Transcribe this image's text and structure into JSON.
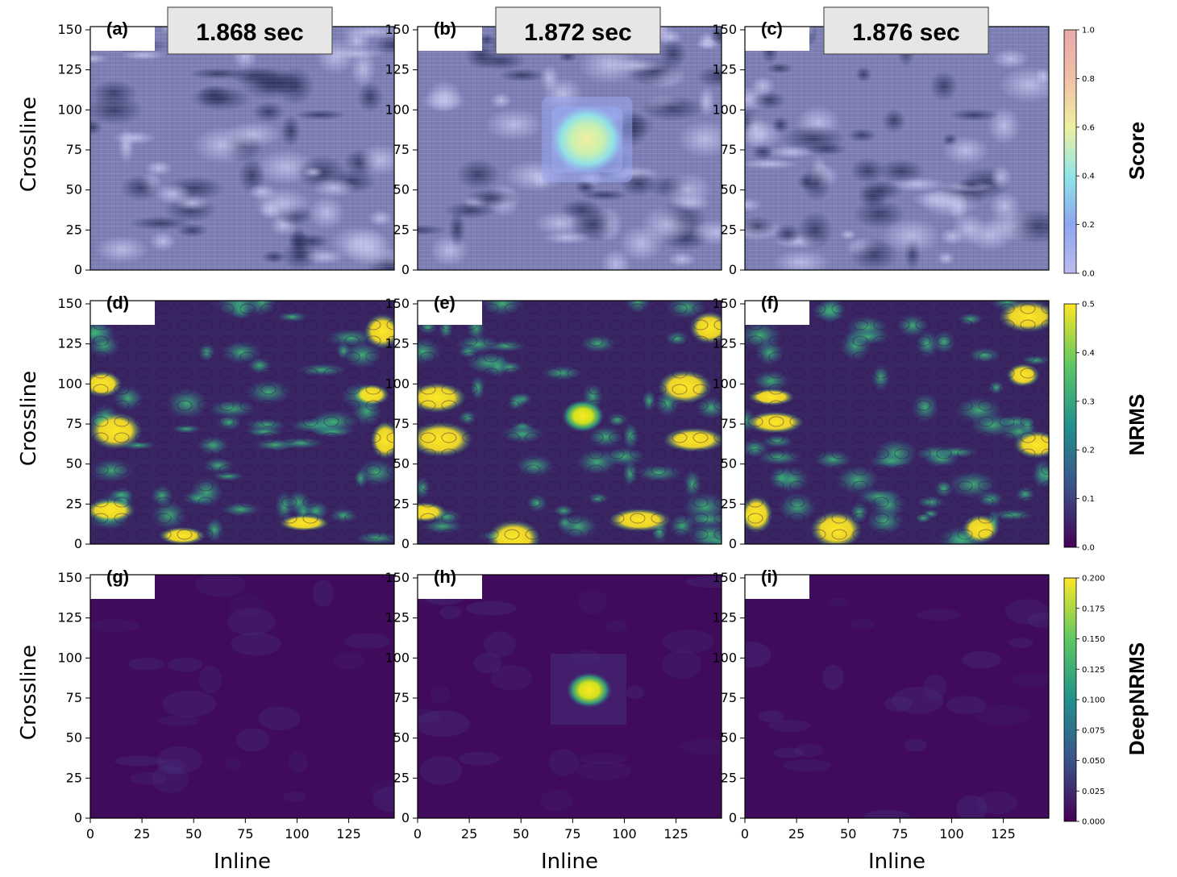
{
  "chart_data": {
    "type": "heatmap",
    "grid": "off",
    "times": [
      "1.868 sec",
      "1.872 sec",
      "1.876 sec"
    ],
    "panel_labels": [
      "(a)",
      "(b)",
      "(c)",
      "(d)",
      "(e)",
      "(f)",
      "(g)",
      "(h)",
      "(i)"
    ],
    "xlabel": "Inline",
    "ylabel": "Crossline",
    "xlim": [
      0,
      147
    ],
    "ylim": [
      0,
      152
    ],
    "x_ticks": [
      0,
      25,
      50,
      75,
      100,
      125
    ],
    "y_ticks": [
      0,
      25,
      50,
      75,
      100,
      125,
      150
    ],
    "rows": [
      {
        "title": "Score",
        "colorbar": {
          "min": 0.0,
          "max": 1.0,
          "ticks": [
            "0.0",
            "0.2",
            "0.4",
            "0.6",
            "0.8",
            "1.0"
          ],
          "colors": [
            "#bbbbee",
            "#8ea6f0",
            "#8fe6e8",
            "#eef0a0",
            "#f2c0a8",
            "#e8aaaa"
          ]
        },
        "anomaly": [
          null,
          {
            "x": 82,
            "y": 80,
            "value": 0.65
          },
          null
        ]
      },
      {
        "title": "NRMS",
        "colorbar": {
          "min": 0.0,
          "max": 0.5,
          "ticks": [
            "0.0",
            "0.1",
            "0.2",
            "0.3",
            "0.4",
            "0.5"
          ],
          "colors": [
            "#440154",
            "#3b528b",
            "#21908d",
            "#5dc863",
            "#fde725"
          ]
        },
        "anomaly": [
          null,
          {
            "x": 80,
            "y": 80,
            "value": 0.5
          },
          null
        ]
      },
      {
        "title": "DeepNRMS",
        "colorbar": {
          "min": 0.0,
          "max": 0.2,
          "ticks": [
            "0.000",
            "0.025",
            "0.050",
            "0.075",
            "0.100",
            "0.125",
            "0.150",
            "0.175",
            "0.200"
          ],
          "colors": [
            "#440154",
            "#3b528b",
            "#21908d",
            "#5dc863",
            "#fde725"
          ]
        },
        "anomaly": [
          null,
          {
            "x": 83,
            "y": 80,
            "value": 0.2
          },
          null
        ]
      }
    ]
  }
}
